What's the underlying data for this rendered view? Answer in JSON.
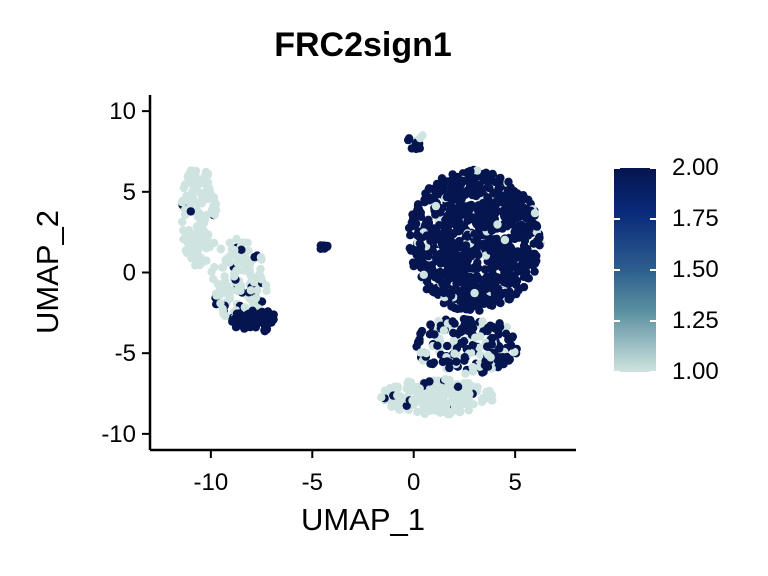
{
  "chart_data": {
    "type": "scatter",
    "title": "FRC2sign1",
    "xlabel": "UMAP_1",
    "ylabel": "UMAP_2",
    "xlim": [
      -13,
      8
    ],
    "ylim": [
      -11,
      11
    ],
    "x_ticks": [
      -10,
      -5,
      0,
      5
    ],
    "y_ticks": [
      10,
      5,
      0,
      -5,
      -10
    ],
    "x_tick_labels": [
      "-10",
      "-5",
      "0",
      "5"
    ],
    "y_tick_labels": [
      "10",
      "5",
      "0",
      "-5",
      "-10"
    ],
    "grid": false,
    "color_scale": {
      "low": 1.0,
      "high": 2.0,
      "low_color": "#cfe3e0",
      "mid_color": "#5a8fa0",
      "high_color": "#04154f",
      "ticks": [
        2.0,
        1.75,
        1.5,
        1.25,
        1.0
      ],
      "tick_labels": [
        "2.00",
        "1.75",
        "1.50",
        "1.25",
        "1.00"
      ],
      "legend_position": "right"
    },
    "clusters": [
      {
        "cx": -10.6,
        "cy": 3.5,
        "rx": 0.9,
        "ry": 3.2,
        "value": 1.0,
        "n": 140,
        "mix": 0.08
      },
      {
        "cx": -8.6,
        "cy": -0.5,
        "rx": 1.4,
        "ry": 2.6,
        "value": 1.0,
        "n": 150,
        "mix": 0.18
      },
      {
        "cx": -7.8,
        "cy": -3.0,
        "rx": 1.2,
        "ry": 0.7,
        "value": 2.0,
        "n": 60,
        "mix": 0.0
      },
      {
        "cx": -4.5,
        "cy": 1.6,
        "rx": 0.35,
        "ry": 0.15,
        "value": 2.0,
        "n": 6,
        "mix": 0.0
      },
      {
        "cx": 3.0,
        "cy": 2.0,
        "rx": 3.3,
        "ry": 4.4,
        "value": 2.0,
        "n": 900,
        "mix": 0.05
      },
      {
        "cx": 2.6,
        "cy": -4.5,
        "rx": 2.6,
        "ry": 1.8,
        "value": 2.0,
        "n": 180,
        "mix": 0.35
      },
      {
        "cx": 1.2,
        "cy": -7.7,
        "rx": 2.8,
        "ry": 1.1,
        "value": 1.0,
        "n": 220,
        "mix": 0.08
      },
      {
        "cx": 0.0,
        "cy": 8.1,
        "rx": 0.6,
        "ry": 0.6,
        "value": 2.0,
        "n": 10,
        "mix": 0.4
      }
    ]
  }
}
